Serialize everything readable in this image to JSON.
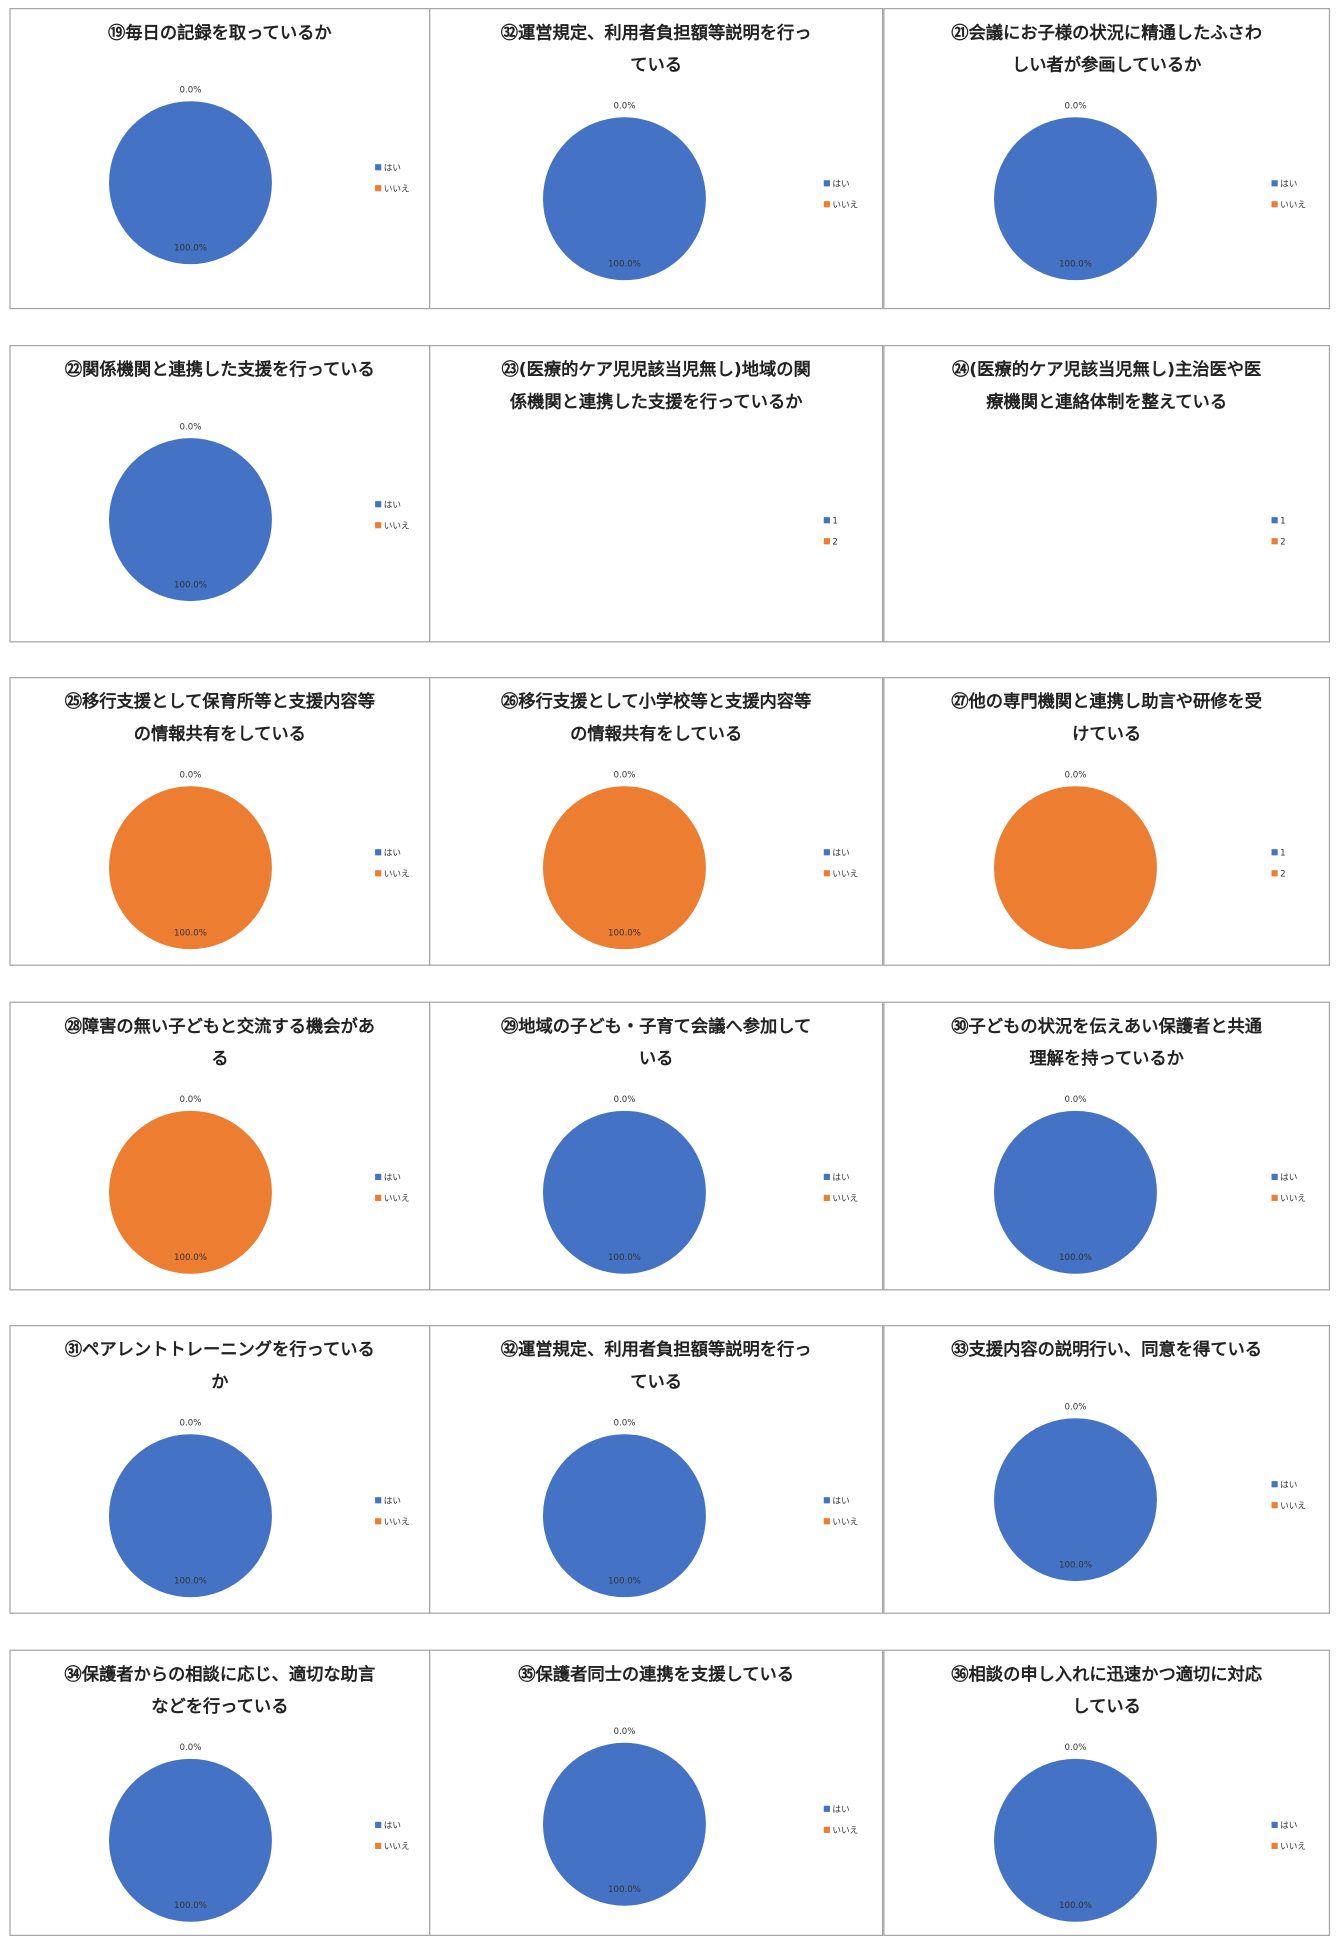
{
  "chart_data": [
    {
      "type": "pie",
      "title": "⑲毎日の記録を取っているか",
      "categories": [
        "はい",
        "いいえ"
      ],
      "values": [
        100,
        0
      ],
      "value_labels": [
        "100.0%",
        "0.0%"
      ],
      "colors": [
        "#4472c4",
        "#ed7d31"
      ]
    },
    {
      "type": "pie",
      "title": "㉜運営規定、利用者負担額等説明を行っている",
      "categories": [
        "はい",
        "いいえ"
      ],
      "values": [
        100,
        0
      ],
      "value_labels": [
        "100.0%",
        "0.0%"
      ],
      "colors": [
        "#4472c4",
        "#ed7d31"
      ]
    },
    {
      "type": "pie",
      "title": "㉑会議にお子様の状況に精通したふさわしい者が参画しているか",
      "categories": [
        "はい",
        "いいえ"
      ],
      "values": [
        100,
        0
      ],
      "value_labels": [
        "100.0%",
        "0.0%"
      ],
      "colors": [
        "#4472c4",
        "#ed7d31"
      ]
    },
    {
      "type": "pie",
      "title": "㉒関係機関と連携した支援を行っている",
      "categories": [
        "はい",
        "いいえ"
      ],
      "values": [
        100,
        0
      ],
      "value_labels": [
        "100.0%",
        "0.0%"
      ],
      "colors": [
        "#4472c4",
        "#ed7d31"
      ]
    },
    {
      "type": "pie",
      "title": "㉓(医療的ケア児児該当児無し)地域の関係機関と連携した支援を行っているか",
      "categories": [
        "1",
        "2"
      ],
      "colors": [
        "#4472c4",
        "#ed7d31"
      ]
    },
    {
      "type": "pie",
      "title": "㉔(医療的ケア児該当児無し)主治医や医療機関と連絡体制を整えている",
      "categories": [
        "1",
        "2"
      ],
      "colors": [
        "#4472c4",
        "#ed7d31"
      ]
    },
    {
      "type": "pie",
      "title": "㉕移行支援として保育所等と支援内容等の情報共有をしている",
      "categories": [
        "はい",
        "いいえ"
      ],
      "values": [
        0,
        100
      ],
      "value_labels": [
        "0.0%",
        "100.0%"
      ],
      "colors": [
        "#4472c4",
        "#ed7d31"
      ]
    },
    {
      "type": "pie",
      "title": "㉖移行支援として小学校等と支援内容等の情報共有をしている",
      "categories": [
        "はい",
        "いいえ"
      ],
      "values": [
        0,
        100
      ],
      "value_labels": [
        "0.0%",
        "100.0%"
      ],
      "colors": [
        "#4472c4",
        "#ed7d31"
      ]
    },
    {
      "type": "pie",
      "title": "㉗他の専門機関と連携し助言や研修を受けている",
      "categories": [
        "1",
        "2"
      ],
      "values": [
        0,
        100
      ],
      "value_labels": [
        "0.0%",
        null
      ],
      "colors": [
        "#4472c4",
        "#ed7d31"
      ]
    },
    {
      "type": "pie",
      "title": "㉘障害の無い子どもと交流する機会がある",
      "categories": [
        "はい",
        "いいえ"
      ],
      "values": [
        0,
        100
      ],
      "value_labels": [
        "0.0%",
        "100.0%"
      ],
      "colors": [
        "#4472c4",
        "#ed7d31"
      ]
    },
    {
      "type": "pie",
      "title": "㉙地域の子ども・子育て会議へ参加している",
      "categories": [
        "はい",
        "いいえ"
      ],
      "values": [
        100,
        0
      ],
      "value_labels": [
        "100.0%",
        "0.0%"
      ],
      "colors": [
        "#4472c4",
        "#ed7d31"
      ]
    },
    {
      "type": "pie",
      "title": "㉚子どもの状況を伝えあい保護者と共通理解を持っているか",
      "categories": [
        "はい",
        "いいえ"
      ],
      "values": [
        100,
        0
      ],
      "value_labels": [
        "100.0%",
        "0.0%"
      ],
      "colors": [
        "#4472c4",
        "#ed7d31"
      ]
    },
    {
      "type": "pie",
      "title": "㉛ペアレントトレーニングを行っているか",
      "categories": [
        "はい",
        "いいえ"
      ],
      "values": [
        100,
        0
      ],
      "value_labels": [
        "100.0%",
        "0.0%"
      ],
      "colors": [
        "#4472c4",
        "#ed7d31"
      ]
    },
    {
      "type": "pie",
      "title": "㉜運営規定、利用者負担額等説明を行っている",
      "categories": [
        "はい",
        "いいえ"
      ],
      "values": [
        100,
        0
      ],
      "value_labels": [
        "100.0%",
        "0.0%"
      ],
      "colors": [
        "#4472c4",
        "#ed7d31"
      ]
    },
    {
      "type": "pie",
      "title": "㉝支援内容の説明行い、同意を得ている",
      "categories": [
        "はい",
        "いいえ"
      ],
      "values": [
        100,
        0
      ],
      "value_labels": [
        "100.0%",
        "0.0%"
      ],
      "colors": [
        "#4472c4",
        "#ed7d31"
      ]
    },
    {
      "type": "pie",
      "title": "㉞保護者からの相談に応じ、適切な助言などを行っている",
      "categories": [
        "はい",
        "いいえ"
      ],
      "values": [
        100,
        0
      ],
      "value_labels": [
        "100.0%",
        "0.0%"
      ],
      "colors": [
        "#4472c4",
        "#ed7d31"
      ]
    },
    {
      "type": "pie",
      "title": "㉟保護者同士の連携を支援している",
      "categories": [
        "はい",
        "いいえ"
      ],
      "values": [
        100,
        0
      ],
      "value_labels": [
        "100.0%",
        "0.0%"
      ],
      "colors": [
        "#4472c4",
        "#ed7d31"
      ]
    },
    {
      "type": "pie",
      "title": "㊱相談の申し入れに迅速かつ適切に対応している",
      "categories": [
        "はい",
        "いいえ"
      ],
      "values": [
        100,
        0
      ],
      "value_labels": [
        "100.0%",
        "0.0%"
      ],
      "colors": [
        "#4472c4",
        "#ed7d31"
      ]
    }
  ]
}
